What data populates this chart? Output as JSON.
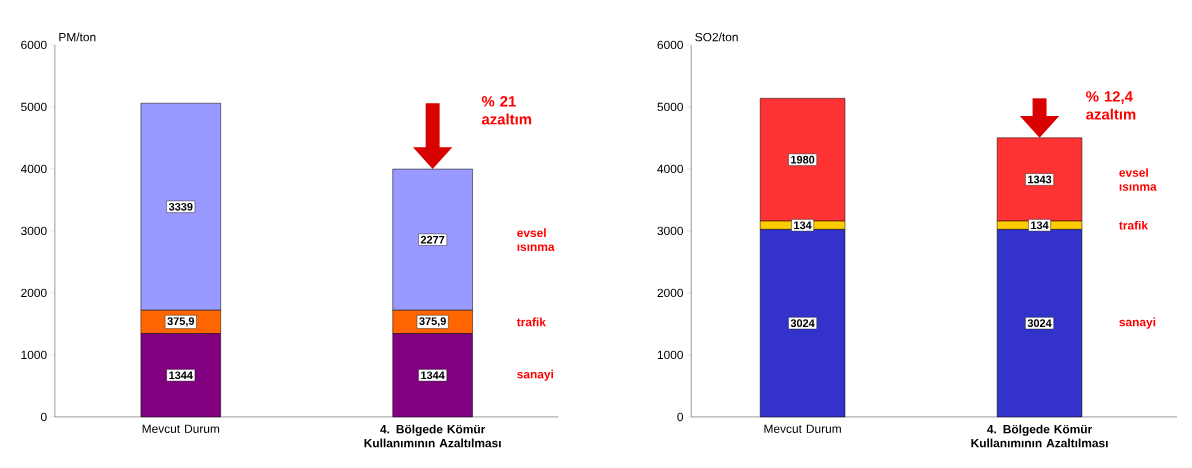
{
  "chart_data": [
    {
      "type": "bar",
      "stacked": true,
      "ylabel": "PM/ton",
      "categories": [
        "Mevcut Durum",
        "4. Bölgede Kömür Kullanımının Azaltılması"
      ],
      "ylim": [
        0,
        6000
      ],
      "yticks": [
        0,
        1000,
        2000,
        3000,
        4000,
        5000,
        6000
      ],
      "annotations": [
        "% 21 azaltım"
      ],
      "series": [
        {
          "name": "sanayi",
          "color": "#800080",
          "values": [
            1344,
            1344
          ],
          "value_labels": [
            "1344",
            "1344"
          ]
        },
        {
          "name": "trafik",
          "color": "#ff6600",
          "values": [
            375.9,
            375.9
          ],
          "value_labels": [
            "375,9",
            "375,9"
          ]
        },
        {
          "name": "evsel ısınma",
          "color": "#9999ff",
          "values": [
            3339,
            2277
          ],
          "value_labels": [
            "3339",
            "2277"
          ]
        }
      ]
    },
    {
      "type": "bar",
      "stacked": true,
      "ylabel": "SO2/ton",
      "categories": [
        "Mevcut Durum",
        "4. Bölgede Kömür Kullanımının Azaltılması"
      ],
      "ylim": [
        0,
        6000
      ],
      "yticks": [
        0,
        1000,
        2000,
        3000,
        4000,
        5000,
        6000
      ],
      "annotations": [
        "% 12,4 azaltım"
      ],
      "series": [
        {
          "name": "sanayi",
          "color": "#3333cc",
          "values": [
            3024,
            3024
          ],
          "value_labels": [
            "3024",
            "3024"
          ]
        },
        {
          "name": "trafik",
          "color": "#ffcc00",
          "values": [
            134,
            134
          ],
          "value_labels": [
            "134",
            "134"
          ]
        },
        {
          "name": "evsel ısınma",
          "color": "#ff3333",
          "values": [
            1980,
            1343
          ],
          "value_labels": [
            "1980",
            "1343"
          ]
        }
      ]
    }
  ]
}
